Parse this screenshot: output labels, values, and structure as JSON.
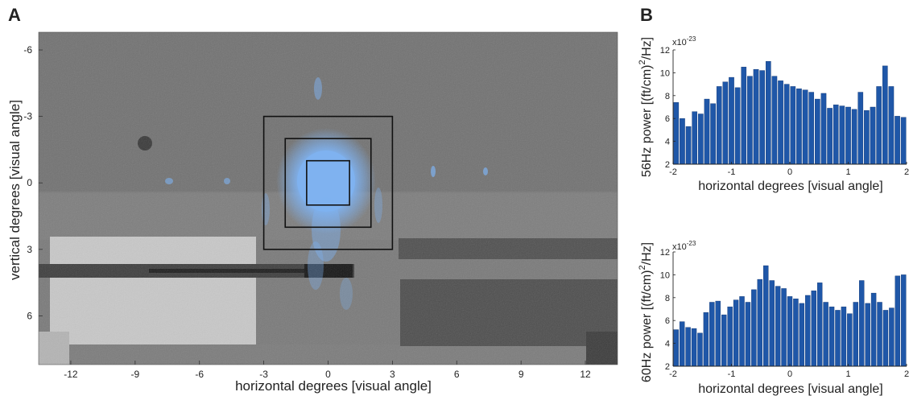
{
  "panels": {
    "a": "A",
    "b": "B"
  },
  "chart_data": [
    {
      "type": "heatmap",
      "panel": "A",
      "xlabel": "horizontal degrees [visual angle]",
      "ylabel": "vertical degrees [visual angle]",
      "xlim": [
        -13.5,
        13.5
      ],
      "ylim": [
        -6.8,
        8.2
      ],
      "y_inverted": true,
      "xticks": [
        -12,
        -9,
        -6,
        -3,
        0,
        3,
        6,
        9,
        12
      ],
      "yticks": [
        -6,
        -3,
        0,
        3,
        6
      ],
      "squares": [
        {
          "x": [
            -3,
            3
          ],
          "y": [
            -3,
            3
          ]
        },
        {
          "x": [
            -2,
            2
          ],
          "y": [
            -2,
            2
          ]
        },
        {
          "x": [
            -1,
            1
          ],
          "y": [
            -1,
            1
          ]
        }
      ],
      "colors": {
        "background": "#7a7a7a",
        "overlay": "#7fb2f0",
        "square": "#111111"
      }
    },
    {
      "type": "bar",
      "panel": "B",
      "ylabel_prefix": "56Hz power [(ft/cm)",
      "ylabel_sup": "2",
      "ylabel_suffix": "/Hz]",
      "xlabel": "horizontal degrees [visual angle]",
      "scale_base": "x10",
      "scale_exp": "-23",
      "xlim": [
        -2,
        2
      ],
      "ylim": [
        2,
        12
      ],
      "xticks": [
        "-2",
        "-1",
        "0",
        "1",
        "2"
      ],
      "yticks": [
        "2",
        "4",
        "6",
        "8",
        "10",
        "12"
      ],
      "bar_color": "#1f57a8",
      "values": [
        7.4,
        6.0,
        5.3,
        6.6,
        6.4,
        7.7,
        7.3,
        8.8,
        9.2,
        9.6,
        8.7,
        10.5,
        9.7,
        10.3,
        10.2,
        11.0,
        9.7,
        9.3,
        9.0,
        8.8,
        8.6,
        8.5,
        8.3,
        7.7,
        8.2,
        6.9,
        7.2,
        7.1,
        7.0,
        6.8,
        8.3,
        6.7,
        7.0,
        8.8,
        10.6,
        8.8,
        6.2,
        6.1
      ]
    },
    {
      "type": "bar",
      "panel": "B",
      "ylabel_prefix": "60Hz power [(ft/cm)",
      "ylabel_sup": "2",
      "ylabel_suffix": "/Hz]",
      "xlabel": "horizontal degrees [visual angle]",
      "scale_base": "x10",
      "scale_exp": "-23",
      "xlim": [
        -2,
        2
      ],
      "ylim": [
        2,
        12
      ],
      "xticks": [
        "-2",
        "-1",
        "0",
        "1",
        "2"
      ],
      "yticks": [
        "2",
        "4",
        "6",
        "8",
        "10",
        "12"
      ],
      "bar_color": "#1f57a8",
      "values": [
        5.2,
        5.9,
        5.4,
        5.3,
        4.9,
        6.7,
        7.6,
        7.7,
        6.5,
        7.2,
        7.8,
        8.1,
        7.6,
        8.7,
        9.6,
        10.8,
        9.5,
        9.0,
        8.8,
        8.1,
        7.9,
        7.5,
        8.2,
        8.6,
        9.3,
        7.6,
        7.2,
        6.9,
        7.2,
        6.6,
        7.6,
        9.5,
        7.5,
        8.4,
        7.6,
        6.9,
        7.1,
        9.9,
        10.0
      ]
    }
  ]
}
